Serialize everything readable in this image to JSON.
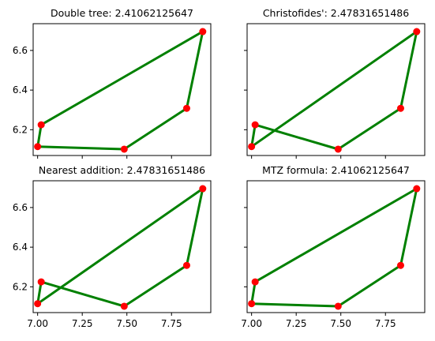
{
  "chart_data": [
    {
      "type": "line",
      "title": "Double tree: 2.41062125647",
      "xlim": [
        6.975,
        7.97
      ],
      "ylim": [
        6.07,
        6.735
      ],
      "xticks": [
        "7.00",
        "7.25",
        "7.50",
        "7.75"
      ],
      "yticks": [
        "6.2",
        "6.4",
        "6.6"
      ],
      "show_xtick_labels": false,
      "show_ytick_labels": true,
      "points": [
        {
          "x": 7.02,
          "y": 6.225
        },
        {
          "x": 7.925,
          "y": 6.695
        },
        {
          "x": 7.835,
          "y": 6.308
        },
        {
          "x": 7.485,
          "y": 6.102
        },
        {
          "x": 7.0,
          "y": 6.115
        }
      ],
      "route": [
        0,
        1,
        2,
        3,
        4,
        0
      ]
    },
    {
      "type": "line",
      "title": "Christofides': 2.47831651486",
      "xlim": [
        6.975,
        7.97
      ],
      "ylim": [
        6.07,
        6.735
      ],
      "xticks": [
        "7.00",
        "7.25",
        "7.50",
        "7.75"
      ],
      "yticks": [
        "6.2",
        "6.4",
        "6.6"
      ],
      "show_xtick_labels": false,
      "show_ytick_labels": false,
      "points": [
        {
          "x": 7.02,
          "y": 6.225
        },
        {
          "x": 7.925,
          "y": 6.695
        },
        {
          "x": 7.835,
          "y": 6.308
        },
        {
          "x": 7.485,
          "y": 6.102
        },
        {
          "x": 7.0,
          "y": 6.115
        }
      ],
      "route": [
        4,
        1,
        2,
        3,
        0,
        4
      ]
    },
    {
      "type": "line",
      "title": "Nearest addition: 2.47831651486",
      "xlim": [
        6.975,
        7.97
      ],
      "ylim": [
        6.07,
        6.735
      ],
      "xticks": [
        "7.00",
        "7.25",
        "7.50",
        "7.75"
      ],
      "yticks": [
        "6.2",
        "6.4",
        "6.6"
      ],
      "show_xtick_labels": true,
      "show_ytick_labels": true,
      "points": [
        {
          "x": 7.02,
          "y": 6.225
        },
        {
          "x": 7.925,
          "y": 6.695
        },
        {
          "x": 7.835,
          "y": 6.308
        },
        {
          "x": 7.485,
          "y": 6.102
        },
        {
          "x": 7.0,
          "y": 6.115
        }
      ],
      "route": [
        4,
        1,
        2,
        3,
        0,
        4
      ]
    },
    {
      "type": "line",
      "title": "MTZ formula: 2.41062125647",
      "xlim": [
        6.975,
        7.97
      ],
      "ylim": [
        6.07,
        6.735
      ],
      "xticks": [
        "7.00",
        "7.25",
        "7.50",
        "7.75"
      ],
      "yticks": [
        "6.2",
        "6.4",
        "6.6"
      ],
      "show_xtick_labels": true,
      "show_ytick_labels": false,
      "points": [
        {
          "x": 7.02,
          "y": 6.225
        },
        {
          "x": 7.925,
          "y": 6.695
        },
        {
          "x": 7.835,
          "y": 6.308
        },
        {
          "x": 7.485,
          "y": 6.102
        },
        {
          "x": 7.0,
          "y": 6.115
        }
      ],
      "route": [
        0,
        1,
        2,
        3,
        4,
        0
      ]
    }
  ],
  "colors": {
    "route": "#008000",
    "city": "#ff0000"
  }
}
